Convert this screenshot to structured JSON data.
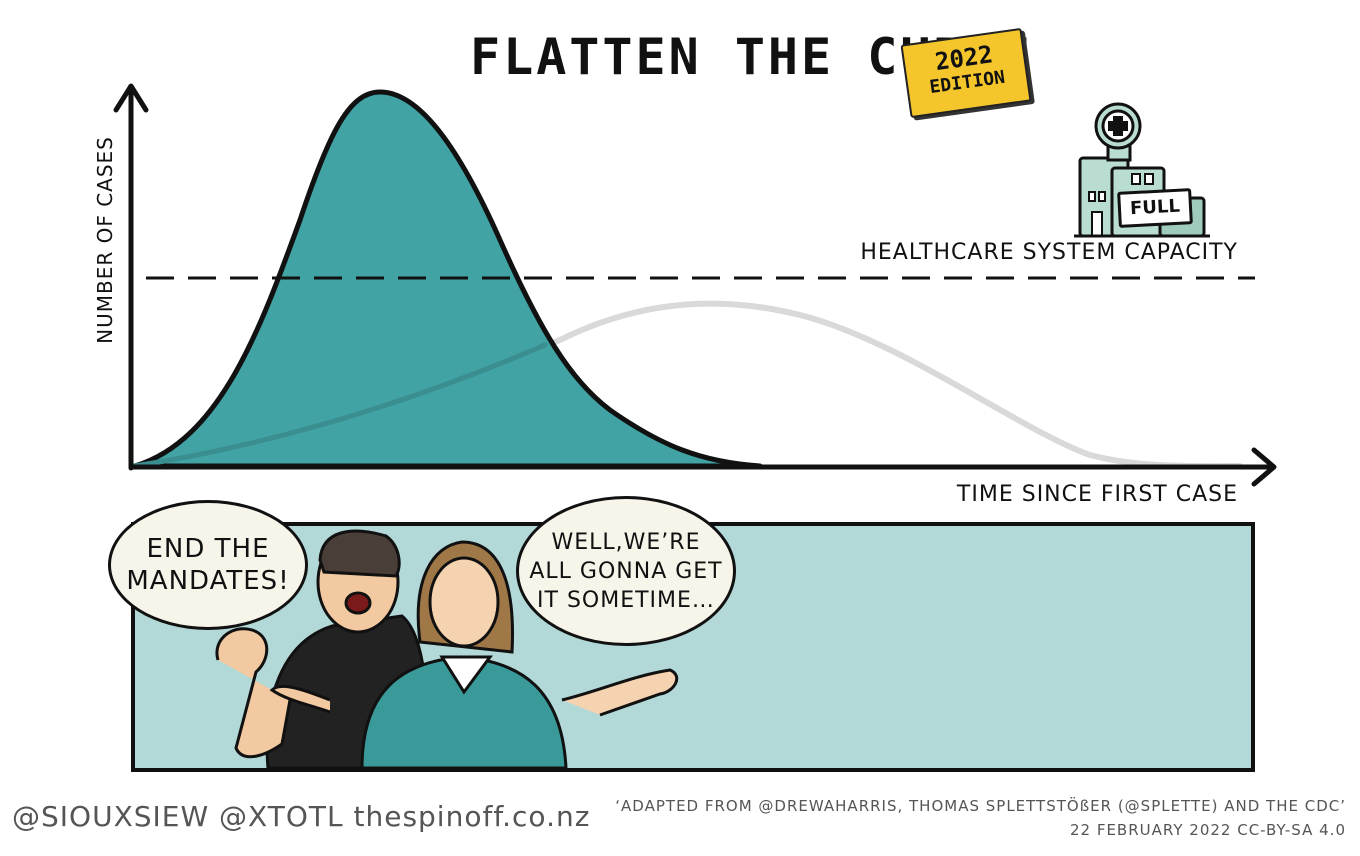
{
  "title": "FLATTEN THE CURVE",
  "badge": {
    "year": "2022",
    "edition": "EDITION"
  },
  "chart": {
    "ylabel": "NUMBER OF CASES",
    "xlabel": "TIME SINCE FIRST CASE",
    "capacity_label": "HEALTHCARE SYSTEM CAPACITY",
    "hospital_sign": "FULL"
  },
  "colors": {
    "peak_fill": "#41a3a4",
    "flat_curve": "#d9d9d9",
    "panel": "#b2d9d8",
    "badge": "#f5c52c",
    "sweater": "#3a9a9a"
  },
  "speech": {
    "left": [
      "END THE",
      "MANDATES!"
    ],
    "right": [
      "WELL,WE’RE",
      "ALL GONNA GET",
      "IT SOMETIME…"
    ]
  },
  "credits": {
    "authors": "@SIOUXSIEW @XTOTL thespinoff.co.nz",
    "adapted": "‘ADAPTED FROM @DREWAHARRIS, THOMAS SPLETTSTÖßER (@SPLETTE) AND THE CDC’",
    "date_license": "22 FEBRUARY 2022    CC-BY-SA 4.0"
  }
}
